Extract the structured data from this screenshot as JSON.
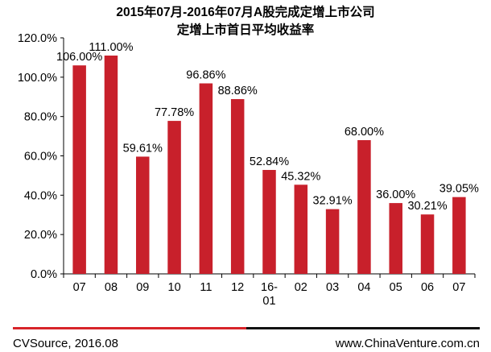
{
  "title_line1": "2015年07月-2016年07月A股完成定增上市公司",
  "title_line2": "定增上市首日平均收益率",
  "footer": {
    "source": "CVSource, 2016.08",
    "website": "www.ChinaVenture.com.cn"
  },
  "colors": {
    "bar": "#c8202b",
    "footer_left_line": "#d8242a",
    "footer_right_line": "#111111"
  },
  "chart_data": {
    "type": "bar",
    "categories": [
      "07",
      "08",
      "09",
      "10",
      "11",
      "12",
      "16-01",
      "02",
      "03",
      "04",
      "05",
      "06",
      "07"
    ],
    "values": [
      106.0,
      111.0,
      59.61,
      77.78,
      96.86,
      88.86,
      52.84,
      45.32,
      32.91,
      68.0,
      36.0,
      30.21,
      39.05
    ],
    "data_labels": [
      "106.00%",
      "111.00%",
      "59.61%",
      "77.78%",
      "96.86%",
      "88.86%",
      "52.84%",
      "45.32%",
      "32.91%",
      "68.00%",
      "36.00%",
      "30.21%",
      "39.05%"
    ],
    "title": "2015年07月-2016年07月A股完成定增上市公司 定增上市首日平均收益率",
    "xlabel": "",
    "ylabel": "",
    "ylim": [
      0,
      120
    ],
    "yticks": [
      0,
      20,
      40,
      60,
      80,
      100,
      120
    ],
    "ytick_labels": [
      "0.0%",
      "20.0%",
      "40.0%",
      "60.0%",
      "80.0%",
      "100.0%",
      "120.0%"
    ],
    "grid": false,
    "legend": "none"
  }
}
